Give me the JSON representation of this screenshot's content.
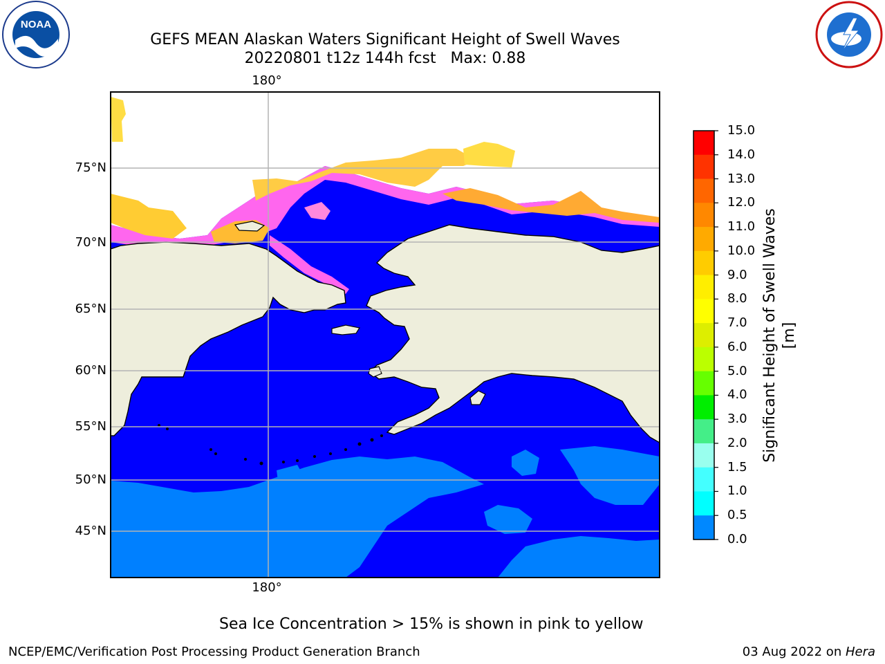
{
  "header": {
    "title_line1": "GEFS MEAN Alaskan Waters Significant Height of Swell Waves",
    "title_line2": "20220801 t12z 144h fcst   Max: 0.88"
  },
  "logos": {
    "left": {
      "text": "NOAA",
      "ring_text": "NATIONAL OCEANIC AND ATMOSPHERIC ADMINISTRATION · U.S. DEPARTMENT OF COMMERCE"
    },
    "right": {
      "ring_text": "NATIONAL WEATHER SERVICE"
    }
  },
  "map": {
    "lon_label_top": "180°",
    "lon_label_bottom": "180°",
    "lat_labels": [
      "75°N",
      "70°N",
      "65°N",
      "60°N",
      "55°N",
      "50°N",
      "45°N"
    ],
    "colors": {
      "land": "#eeeedc",
      "ocean_low": "#0000ff",
      "ocean_mid": "#0080ff",
      "sea_ice_pink": "#ff55ff",
      "sea_ice_orange": "#ffbb33",
      "sea_ice_yellow": "#ffee44",
      "gridline": "#b4b4b4"
    }
  },
  "colorbar": {
    "ticks": [
      "15.0",
      "14.0",
      "13.0",
      "12.0",
      "11.0",
      "10.0",
      "9.0",
      "8.0",
      "7.0",
      "6.0",
      "5.0",
      "4.0",
      "3.0",
      "2.0",
      "1.5",
      "1.0",
      "0.5",
      "0.0"
    ],
    "colors": [
      "#ff0000",
      "#ff3300",
      "#ff6600",
      "#ff8800",
      "#ffaa00",
      "#ffcc00",
      "#ffee00",
      "#ffff00",
      "#ddee00",
      "#bbff00",
      "#66ff00",
      "#00ee00",
      "#44ee88",
      "#99ffee",
      "#44ffff",
      "#00ffff",
      "#0088ff",
      "#0000ff"
    ],
    "label": "Significant Height of Swell Waves [m]"
  },
  "note": "Sea Ice Concentration > 15% is shown in pink to yellow",
  "footer": {
    "left": "NCEP/EMC/Verification Post Processing Product Generation Branch",
    "right_date": "03 Aug 2022 on ",
    "right_host": "Hera"
  }
}
